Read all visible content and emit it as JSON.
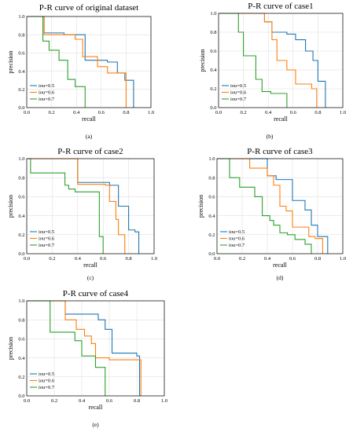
{
  "colors": {
    "iou=0.5": "#1f77b4",
    "iou=0.6": "#ff7f0e",
    "iou=0.7": "#2ca02c"
  },
  "chart_data": [
    {
      "type": "line",
      "title": "P-R curve of original dataset",
      "xlabel": "recall",
      "ylabel": "precision",
      "xlim": [
        0,
        1
      ],
      "ylim": [
        0,
        1
      ],
      "xticks": [
        "0.0",
        "0.2",
        "0.4",
        "0.6",
        "0.8",
        "1.0"
      ],
      "yticks": [
        "0.0",
        "0.2",
        "0.4",
        "0.6",
        "0.8",
        "1.0"
      ],
      "grid": true,
      "legend": "bottom-left",
      "caption": "(a)",
      "series": [
        {
          "name": "iou=0.5",
          "x": [
            0,
            0.14,
            0.14,
            0.3,
            0.3,
            0.47,
            0.47,
            0.65,
            0.65,
            0.73,
            0.73,
            0.79,
            0.79,
            0.86,
            0.86
          ],
          "y": [
            1,
            1,
            0.82,
            0.82,
            0.8,
            0.8,
            0.52,
            0.52,
            0.5,
            0.5,
            0.38,
            0.38,
            0.3,
            0.3,
            0
          ]
        },
        {
          "name": "iou=0.6",
          "x": [
            0,
            0.14,
            0.14,
            0.39,
            0.39,
            0.45,
            0.45,
            0.57,
            0.57,
            0.65,
            0.65,
            0.8,
            0.8
          ],
          "y": [
            1,
            1,
            0.8,
            0.8,
            0.75,
            0.75,
            0.56,
            0.56,
            0.45,
            0.45,
            0.38,
            0.38,
            0
          ]
        },
        {
          "name": "iou=0.7",
          "x": [
            0,
            0.13,
            0.13,
            0.18,
            0.18,
            0.26,
            0.26,
            0.33,
            0.33,
            0.39,
            0.39,
            0.47,
            0.47
          ],
          "y": [
            1,
            1,
            0.73,
            0.73,
            0.63,
            0.63,
            0.52,
            0.52,
            0.31,
            0.31,
            0.23,
            0.23,
            0
          ]
        }
      ]
    },
    {
      "type": "line",
      "title": "P-R curve of case1",
      "xlabel": "recall",
      "ylabel": "precision",
      "xlim": [
        0,
        1
      ],
      "ylim": [
        0,
        1
      ],
      "xticks": [
        "0.0",
        "0.2",
        "0.4",
        "0.6",
        "0.8",
        "1.0"
      ],
      "yticks": [
        "0.0",
        "0.2",
        "0.4",
        "0.6",
        "0.8",
        "1.0"
      ],
      "grid": true,
      "legend": "bottom-left",
      "caption": "(b)",
      "series": [
        {
          "name": "iou=0.5",
          "x": [
            0,
            0.37,
            0.37,
            0.43,
            0.43,
            0.55,
            0.55,
            0.62,
            0.62,
            0.7,
            0.7,
            0.76,
            0.76,
            0.8,
            0.8,
            0.86,
            0.86
          ],
          "y": [
            1,
            1,
            0.91,
            0.91,
            0.8,
            0.8,
            0.78,
            0.78,
            0.72,
            0.72,
            0.6,
            0.6,
            0.5,
            0.5,
            0.28,
            0.28,
            0
          ]
        },
        {
          "name": "iou=0.6",
          "x": [
            0,
            0.37,
            0.37,
            0.43,
            0.43,
            0.47,
            0.47,
            0.55,
            0.55,
            0.62,
            0.62,
            0.75,
            0.75,
            0.79,
            0.79
          ],
          "y": [
            1,
            1,
            0.91,
            0.91,
            0.72,
            0.72,
            0.5,
            0.5,
            0.4,
            0.4,
            0.25,
            0.25,
            0.2,
            0.2,
            0
          ]
        },
        {
          "name": "iou=0.7",
          "x": [
            0,
            0.16,
            0.16,
            0.2,
            0.2,
            0.3,
            0.3,
            0.35,
            0.35,
            0.42,
            0.42,
            0.55,
            0.55
          ],
          "y": [
            1,
            1,
            0.8,
            0.8,
            0.55,
            0.55,
            0.3,
            0.3,
            0.17,
            0.17,
            0.15,
            0.15,
            0
          ]
        }
      ]
    },
    {
      "type": "line",
      "title": "P-R curve of case2",
      "xlabel": "recall",
      "ylabel": "precision",
      "xlim": [
        0,
        1
      ],
      "ylim": [
        0,
        1
      ],
      "xticks": [
        "0.0",
        "0.2",
        "0.4",
        "0.6",
        "0.8",
        "1.0"
      ],
      "yticks": [
        "0.0",
        "0.2",
        "0.4",
        "0.6",
        "0.8",
        "1.0"
      ],
      "grid": true,
      "legend": "bottom-left",
      "caption": "(c)",
      "series": [
        {
          "name": "iou=0.5",
          "x": [
            0,
            0.4,
            0.4,
            0.65,
            0.65,
            0.72,
            0.72,
            0.8,
            0.8,
            0.85,
            0.85,
            0.88,
            0.88
          ],
          "y": [
            1,
            1,
            0.75,
            0.75,
            0.72,
            0.72,
            0.5,
            0.5,
            0.25,
            0.25,
            0.23,
            0.23,
            0
          ]
        },
        {
          "name": "iou=0.6",
          "x": [
            0,
            0.4,
            0.4,
            0.62,
            0.62,
            0.65,
            0.65,
            0.7,
            0.7,
            0.72,
            0.72,
            0.77,
            0.77
          ],
          "y": [
            1,
            1,
            0.73,
            0.73,
            0.72,
            0.72,
            0.55,
            0.55,
            0.36,
            0.36,
            0.2,
            0.2,
            0
          ]
        },
        {
          "name": "iou=0.7",
          "x": [
            0,
            0.03,
            0.03,
            0.3,
            0.3,
            0.33,
            0.33,
            0.38,
            0.38,
            0.57,
            0.57,
            0.6,
            0.6
          ],
          "y": [
            1,
            1,
            0.85,
            0.85,
            0.72,
            0.72,
            0.68,
            0.68,
            0.65,
            0.65,
            0.18,
            0.18,
            0
          ]
        }
      ]
    },
    {
      "type": "line",
      "title": "P-R curve of case3",
      "xlabel": "recall",
      "ylabel": "precision",
      "xlim": [
        0,
        1
      ],
      "ylim": [
        0,
        1
      ],
      "xticks": [
        "0.0",
        "0.2",
        "0.4",
        "0.6",
        "0.8",
        "1.0"
      ],
      "yticks": [
        "0.0",
        "0.2",
        "0.4",
        "0.6",
        "0.8",
        "1.0"
      ],
      "grid": true,
      "legend": "bottom-left",
      "caption": "(d)",
      "series": [
        {
          "name": "iou=0.5",
          "x": [
            0,
            0.4,
            0.4,
            0.47,
            0.47,
            0.6,
            0.6,
            0.7,
            0.7,
            0.75,
            0.75,
            0.8,
            0.8,
            0.88,
            0.88
          ],
          "y": [
            1,
            1,
            0.82,
            0.82,
            0.78,
            0.78,
            0.56,
            0.56,
            0.46,
            0.46,
            0.3,
            0.3,
            0.18,
            0.18,
            0
          ]
        },
        {
          "name": "iou=0.6",
          "x": [
            0,
            0.26,
            0.26,
            0.4,
            0.4,
            0.45,
            0.45,
            0.5,
            0.5,
            0.55,
            0.55,
            0.6,
            0.6,
            0.73,
            0.73,
            0.78,
            0.78,
            0.84,
            0.84
          ],
          "y": [
            1,
            1,
            0.9,
            0.9,
            0.82,
            0.82,
            0.72,
            0.72,
            0.5,
            0.5,
            0.45,
            0.45,
            0.28,
            0.28,
            0.18,
            0.18,
            0.16,
            0.16,
            0
          ]
        },
        {
          "name": "iou=0.7",
          "x": [
            0,
            0.1,
            0.1,
            0.18,
            0.18,
            0.3,
            0.3,
            0.36,
            0.36,
            0.42,
            0.42,
            0.45,
            0.45,
            0.5,
            0.5,
            0.56,
            0.56,
            0.62,
            0.62,
            0.7,
            0.7,
            0.75,
            0.75
          ],
          "y": [
            1,
            1,
            0.8,
            0.8,
            0.7,
            0.7,
            0.6,
            0.6,
            0.4,
            0.4,
            0.35,
            0.35,
            0.3,
            0.3,
            0.22,
            0.22,
            0.2,
            0.2,
            0.15,
            0.15,
            0.1,
            0.1,
            0
          ]
        }
      ]
    },
    {
      "type": "line",
      "title": "P-R curve of case4",
      "xlabel": "recall",
      "ylabel": "precision",
      "xlim": [
        0,
        1
      ],
      "ylim": [
        0,
        1
      ],
      "xticks": [
        "0.0",
        "0.2",
        "0.4",
        "0.6",
        "0.8",
        "1.0"
      ],
      "yticks": [
        "0.0",
        "0.2",
        "0.4",
        "0.6",
        "0.8",
        "1.0"
      ],
      "grid": true,
      "legend": "bottom-left",
      "caption": "(e)",
      "series": [
        {
          "name": "iou=0.5",
          "x": [
            0,
            0.28,
            0.28,
            0.52,
            0.52,
            0.57,
            0.57,
            0.62,
            0.62,
            0.8,
            0.8,
            0.82,
            0.82
          ],
          "y": [
            1,
            1,
            0.86,
            0.86,
            0.8,
            0.8,
            0.7,
            0.7,
            0.45,
            0.45,
            0.42,
            0.42,
            0
          ]
        },
        {
          "name": "iou=0.6",
          "x": [
            0,
            0.28,
            0.28,
            0.36,
            0.36,
            0.42,
            0.42,
            0.47,
            0.47,
            0.5,
            0.5,
            0.6,
            0.6,
            0.83,
            0.83
          ],
          "y": [
            1,
            1,
            0.8,
            0.8,
            0.7,
            0.7,
            0.63,
            0.63,
            0.55,
            0.55,
            0.4,
            0.4,
            0.38,
            0.38,
            0
          ]
        },
        {
          "name": "iou=0.7",
          "x": [
            0,
            0.17,
            0.17,
            0.35,
            0.35,
            0.4,
            0.4,
            0.5,
            0.5,
            0.57,
            0.57
          ],
          "y": [
            1,
            1,
            0.67,
            0.67,
            0.58,
            0.58,
            0.42,
            0.42,
            0.3,
            0.3,
            0
          ]
        }
      ]
    }
  ]
}
